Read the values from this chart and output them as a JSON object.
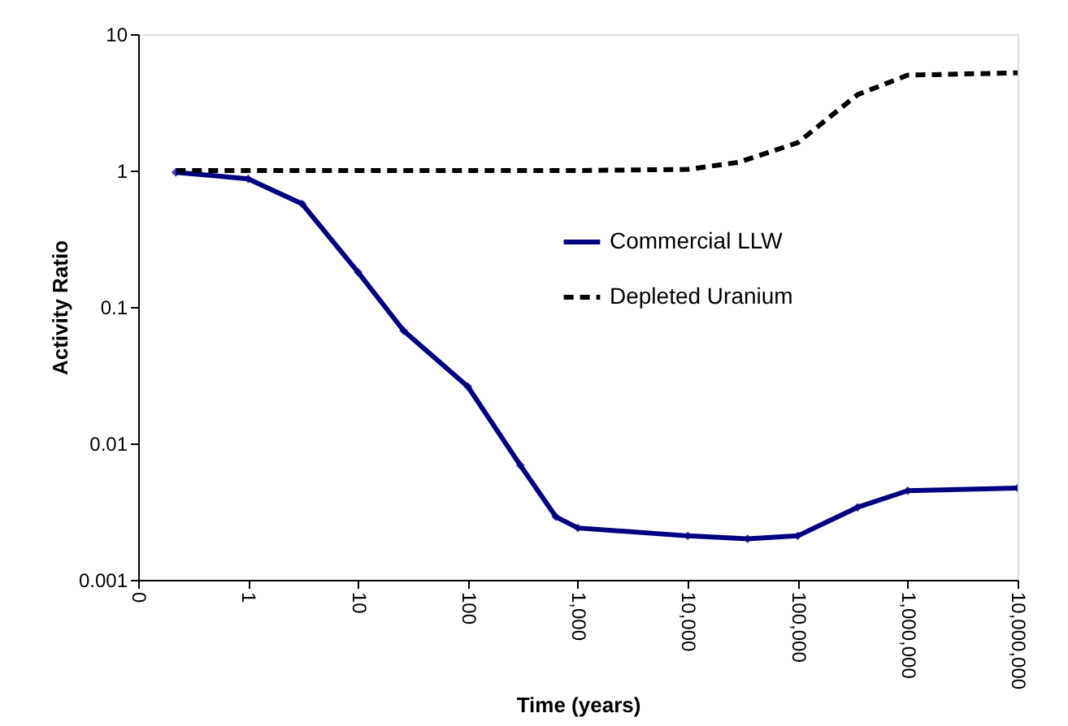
{
  "chart_data": {
    "type": "line",
    "xlabel": "Time (years)",
    "ylabel": "Activity Ratio",
    "log": "xy",
    "xlim": [
      0.1,
      10000000
    ],
    "xticks": [
      {
        "value": 0.1,
        "label": "0"
      },
      1,
      10,
      100,
      {
        "value": 1000,
        "label": "1,000"
      },
      {
        "value": 10000,
        "label": "10,000"
      },
      {
        "value": 100000,
        "label": "100,000"
      },
      {
        "value": 1000000,
        "label": "1,000,000"
      },
      {
        "value": 10000000,
        "label": "10,000,000"
      }
    ],
    "ylim": [
      0.001,
      10
    ],
    "yticks": [
      0.001,
      0.01,
      0.1,
      1,
      10
    ],
    "grid": false,
    "legend": "center",
    "series": [
      {
        "name": "Commercial LLW",
        "color": "#000080",
        "marker": "diamond",
        "line_style": "solid",
        "x": [
          0.22,
          1,
          3.1,
          10,
          26,
          100,
          300,
          630,
          1000,
          10000,
          35000,
          100000,
          350000,
          1000000,
          10000000
        ],
        "values": [
          0.97,
          0.87,
          0.57,
          0.18,
          0.067,
          0.026,
          0.0069,
          0.0029,
          0.0024,
          0.0021,
          0.002,
          0.0021,
          0.0034,
          0.0045,
          0.0047
        ]
      },
      {
        "name": "Depleted Uranium",
        "color": "#000000",
        "marker": "none",
        "line_style": "dashed",
        "x": [
          0.22,
          1,
          10,
          100,
          1000,
          10000,
          29000,
          100000,
          350000,
          1000000,
          10000000
        ],
        "values": [
          1,
          1,
          1,
          1,
          1,
          1.02,
          1.15,
          1.6,
          3.6,
          5.0,
          5.2
        ]
      }
    ]
  }
}
